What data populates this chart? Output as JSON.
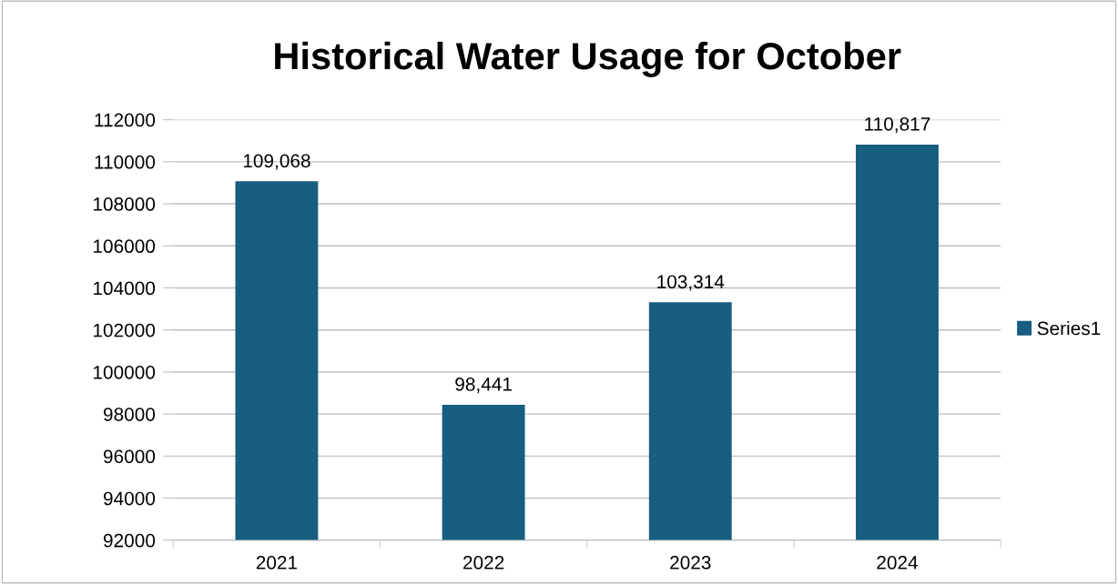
{
  "chart_data": {
    "type": "bar",
    "title": "Historical Water Usage for October",
    "categories": [
      "2021",
      "2022",
      "2023",
      "2024"
    ],
    "series": [
      {
        "name": "Series1",
        "color": "#175e80",
        "values": [
          109068,
          98441,
          103314,
          110817
        ],
        "value_labels": [
          "109,068",
          "98,441",
          "103,314",
          "110,817"
        ]
      }
    ],
    "ylim": [
      92000,
      112000
    ],
    "yticks": [
      92000,
      94000,
      96000,
      98000,
      100000,
      102000,
      104000,
      106000,
      108000,
      110000,
      112000
    ],
    "grid": "y",
    "legend": "right"
  }
}
